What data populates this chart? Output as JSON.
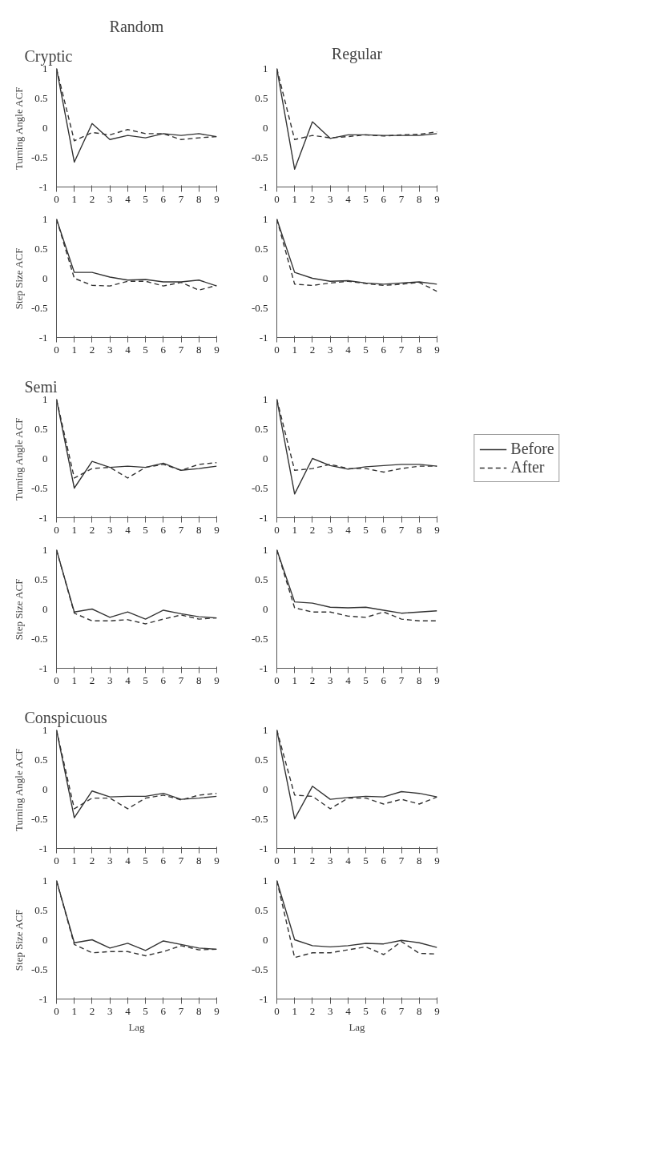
{
  "chart_data": [
    {
      "type": "line",
      "title": "Random",
      "subtitle": "Cryptic",
      "ylabel": "Turning Angle ACF",
      "x": [
        0,
        1,
        2,
        3,
        4,
        5,
        6,
        7,
        8,
        9
      ],
      "xlim": [
        0,
        9
      ],
      "xticks": [
        0,
        1,
        2,
        3,
        4,
        5,
        6,
        7,
        8,
        9
      ],
      "ylim": [
        -1,
        1
      ],
      "yticks": [
        -1,
        -0.5,
        0,
        0.5,
        1
      ],
      "grid": false,
      "series": [
        {
          "color": "#333333",
          "line_style": "solid",
          "values": [
            1,
            -0.58,
            0.07,
            -0.2,
            -0.13,
            -0.17,
            -0.1,
            -0.13,
            -0.1,
            -0.15
          ]
        },
        {
          "color": "#333333",
          "line_style": "dashed",
          "values": [
            1,
            -0.22,
            -0.08,
            -0.12,
            -0.03,
            -0.1,
            -0.1,
            -0.2,
            -0.17,
            -0.15
          ]
        }
      ]
    },
    {
      "type": "line",
      "title": "Regular",
      "x": [
        0,
        1,
        2,
        3,
        4,
        5,
        6,
        7,
        8,
        9
      ],
      "xlim": [
        0,
        9
      ],
      "xticks": [
        0,
        1,
        2,
        3,
        4,
        5,
        6,
        7,
        8,
        9
      ],
      "ylim": [
        -1,
        1
      ],
      "yticks": [
        -1,
        -0.5,
        0,
        0.5,
        1
      ],
      "grid": false,
      "series": [
        {
          "color": "#333333",
          "line_style": "solid",
          "values": [
            1,
            -0.7,
            0.1,
            -0.18,
            -0.12,
            -0.12,
            -0.13,
            -0.13,
            -0.13,
            -0.1
          ]
        },
        {
          "color": "#333333",
          "line_style": "dashed",
          "values": [
            1,
            -0.2,
            -0.13,
            -0.17,
            -0.15,
            -0.12,
            -0.14,
            -0.12,
            -0.11,
            -0.07
          ]
        }
      ]
    },
    {
      "type": "line",
      "ylabel": "Step Size ACF",
      "x": [
        0,
        1,
        2,
        3,
        4,
        5,
        6,
        7,
        8,
        9
      ],
      "xlim": [
        0,
        9
      ],
      "xticks": [
        0,
        1,
        2,
        3,
        4,
        5,
        6,
        7,
        8,
        9
      ],
      "ylim": [
        -1,
        1
      ],
      "yticks": [
        -1,
        -0.5,
        0,
        0.5,
        1
      ],
      "grid": false,
      "series": [
        {
          "color": "#333333",
          "line_style": "solid",
          "values": [
            1,
            0.1,
            0.1,
            0.02,
            -0.03,
            -0.02,
            -0.06,
            -0.06,
            -0.03,
            -0.13
          ]
        },
        {
          "color": "#333333",
          "line_style": "dashed",
          "values": [
            1,
            0.0,
            -0.12,
            -0.13,
            -0.05,
            -0.05,
            -0.13,
            -0.07,
            -0.2,
            -0.12
          ]
        }
      ]
    },
    {
      "type": "line",
      "x": [
        0,
        1,
        2,
        3,
        4,
        5,
        6,
        7,
        8,
        9
      ],
      "xlim": [
        0,
        9
      ],
      "xticks": [
        0,
        1,
        2,
        3,
        4,
        5,
        6,
        7,
        8,
        9
      ],
      "ylim": [
        -1,
        1
      ],
      "yticks": [
        -1,
        -0.5,
        0,
        0.5,
        1
      ],
      "grid": false,
      "series": [
        {
          "color": "#333333",
          "line_style": "solid",
          "values": [
            1,
            0.1,
            0.0,
            -0.05,
            -0.04,
            -0.08,
            -0.1,
            -0.08,
            -0.06,
            -0.1
          ]
        },
        {
          "color": "#333333",
          "line_style": "dashed",
          "values": [
            1,
            -0.1,
            -0.12,
            -0.08,
            -0.05,
            -0.09,
            -0.12,
            -0.1,
            -0.07,
            -0.22
          ]
        }
      ]
    },
    {
      "type": "line",
      "subtitle": "Semi",
      "ylabel": "Turning Angle ACF",
      "x": [
        0,
        1,
        2,
        3,
        4,
        5,
        6,
        7,
        8,
        9
      ],
      "xlim": [
        0,
        9
      ],
      "xticks": [
        0,
        1,
        2,
        3,
        4,
        5,
        6,
        7,
        8,
        9
      ],
      "ylim": [
        -1,
        1
      ],
      "yticks": [
        -1,
        -0.5,
        0,
        0.5,
        1
      ],
      "grid": false,
      "series": [
        {
          "color": "#333333",
          "line_style": "solid",
          "values": [
            1,
            -0.5,
            -0.05,
            -0.15,
            -0.13,
            -0.15,
            -0.08,
            -0.2,
            -0.17,
            -0.13
          ]
        },
        {
          "color": "#333333",
          "line_style": "dashed",
          "values": [
            1,
            -0.33,
            -0.17,
            -0.15,
            -0.33,
            -0.15,
            -0.1,
            -0.2,
            -0.1,
            -0.07
          ]
        }
      ]
    },
    {
      "type": "line",
      "x": [
        0,
        1,
        2,
        3,
        4,
        5,
        6,
        7,
        8,
        9
      ],
      "xlim": [
        0,
        9
      ],
      "xticks": [
        0,
        1,
        2,
        3,
        4,
        5,
        6,
        7,
        8,
        9
      ],
      "ylim": [
        -1,
        1
      ],
      "yticks": [
        -1,
        -0.5,
        0,
        0.5,
        1
      ],
      "grid": false,
      "legend": "right",
      "series": [
        {
          "name": "Before",
          "color": "#333333",
          "line_style": "solid",
          "values": [
            1,
            -0.6,
            0.0,
            -0.12,
            -0.18,
            -0.14,
            -0.12,
            -0.1,
            -0.1,
            -0.13
          ]
        },
        {
          "name": "After",
          "color": "#333333",
          "line_style": "dashed",
          "values": [
            1,
            -0.2,
            -0.17,
            -0.1,
            -0.17,
            -0.17,
            -0.23,
            -0.17,
            -0.13,
            -0.13
          ]
        }
      ]
    },
    {
      "type": "line",
      "ylabel": "Step Size ACF",
      "x": [
        0,
        1,
        2,
        3,
        4,
        5,
        6,
        7,
        8,
        9
      ],
      "xlim": [
        0,
        9
      ],
      "xticks": [
        0,
        1,
        2,
        3,
        4,
        5,
        6,
        7,
        8,
        9
      ],
      "ylim": [
        -1,
        1
      ],
      "yticks": [
        -1,
        -0.5,
        0,
        0.5,
        1
      ],
      "grid": false,
      "series": [
        {
          "color": "#333333",
          "line_style": "solid",
          "values": [
            1,
            -0.05,
            0.0,
            -0.14,
            -0.05,
            -0.17,
            -0.02,
            -0.08,
            -0.13,
            -0.15
          ]
        },
        {
          "color": "#333333",
          "line_style": "dashed",
          "values": [
            1,
            -0.07,
            -0.2,
            -0.2,
            -0.18,
            -0.25,
            -0.17,
            -0.1,
            -0.17,
            -0.15
          ]
        }
      ]
    },
    {
      "type": "line",
      "x": [
        0,
        1,
        2,
        3,
        4,
        5,
        6,
        7,
        8,
        9
      ],
      "xlim": [
        0,
        9
      ],
      "xticks": [
        0,
        1,
        2,
        3,
        4,
        5,
        6,
        7,
        8,
        9
      ],
      "ylim": [
        -1,
        1
      ],
      "yticks": [
        -1,
        -0.5,
        0,
        0.5,
        1
      ],
      "grid": false,
      "series": [
        {
          "color": "#333333",
          "line_style": "solid",
          "values": [
            1,
            0.12,
            0.1,
            0.03,
            0.02,
            0.03,
            -0.02,
            -0.07,
            -0.05,
            -0.03
          ]
        },
        {
          "color": "#333333",
          "line_style": "dashed",
          "values": [
            1,
            0.02,
            -0.05,
            -0.05,
            -0.12,
            -0.14,
            -0.05,
            -0.17,
            -0.2,
            -0.2
          ]
        }
      ]
    },
    {
      "type": "line",
      "subtitle": "Conspicuous",
      "ylabel": "Turning Angle ACF",
      "x": [
        0,
        1,
        2,
        3,
        4,
        5,
        6,
        7,
        8,
        9
      ],
      "xlim": [
        0,
        9
      ],
      "xticks": [
        0,
        1,
        2,
        3,
        4,
        5,
        6,
        7,
        8,
        9
      ],
      "ylim": [
        -1,
        1
      ],
      "yticks": [
        -1,
        -0.5,
        0,
        0.5,
        1
      ],
      "grid": false,
      "series": [
        {
          "color": "#333333",
          "line_style": "solid",
          "values": [
            1,
            -0.48,
            -0.03,
            -0.13,
            -0.12,
            -0.12,
            -0.07,
            -0.17,
            -0.15,
            -0.12
          ]
        },
        {
          "color": "#333333",
          "line_style": "dashed",
          "values": [
            1,
            -0.33,
            -0.15,
            -0.15,
            -0.33,
            -0.15,
            -0.1,
            -0.18,
            -0.1,
            -0.07
          ]
        }
      ]
    },
    {
      "type": "line",
      "x": [
        0,
        1,
        2,
        3,
        4,
        5,
        6,
        7,
        8,
        9
      ],
      "xlim": [
        0,
        9
      ],
      "xticks": [
        0,
        1,
        2,
        3,
        4,
        5,
        6,
        7,
        8,
        9
      ],
      "ylim": [
        -1,
        1
      ],
      "yticks": [
        -1,
        -0.5,
        0,
        0.5,
        1
      ],
      "grid": false,
      "series": [
        {
          "color": "#333333",
          "line_style": "solid",
          "values": [
            1,
            -0.5,
            0.05,
            -0.17,
            -0.14,
            -0.12,
            -0.13,
            -0.04,
            -0.07,
            -0.13
          ]
        },
        {
          "color": "#333333",
          "line_style": "dashed",
          "values": [
            1,
            -0.1,
            -0.12,
            -0.33,
            -0.15,
            -0.15,
            -0.25,
            -0.17,
            -0.25,
            -0.13
          ]
        }
      ]
    },
    {
      "type": "line",
      "ylabel": "Step Size ACF",
      "xlabel": "Lag",
      "x": [
        0,
        1,
        2,
        3,
        4,
        5,
        6,
        7,
        8,
        9
      ],
      "xlim": [
        0,
        9
      ],
      "xticks": [
        0,
        1,
        2,
        3,
        4,
        5,
        6,
        7,
        8,
        9
      ],
      "ylim": [
        -1,
        1
      ],
      "yticks": [
        -1,
        -0.5,
        0,
        0.5,
        1
      ],
      "grid": false,
      "series": [
        {
          "color": "#333333",
          "line_style": "solid",
          "values": [
            1,
            -0.05,
            0.0,
            -0.14,
            -0.06,
            -0.18,
            -0.02,
            -0.08,
            -0.14,
            -0.16
          ]
        },
        {
          "color": "#333333",
          "line_style": "dashed",
          "values": [
            1,
            -0.08,
            -0.22,
            -0.2,
            -0.2,
            -0.27,
            -0.2,
            -0.1,
            -0.17,
            -0.16
          ]
        }
      ]
    },
    {
      "type": "line",
      "xlabel": "Lag",
      "x": [
        0,
        1,
        2,
        3,
        4,
        5,
        6,
        7,
        8,
        9
      ],
      "xlim": [
        0,
        9
      ],
      "xticks": [
        0,
        1,
        2,
        3,
        4,
        5,
        6,
        7,
        8,
        9
      ],
      "ylim": [
        -1,
        1
      ],
      "yticks": [
        -1,
        -0.5,
        0,
        0.5,
        1
      ],
      "grid": false,
      "series": [
        {
          "color": "#333333",
          "line_style": "solid",
          "values": [
            1,
            0.0,
            -0.1,
            -0.12,
            -0.1,
            -0.06,
            -0.07,
            -0.01,
            -0.05,
            -0.13
          ]
        },
        {
          "color": "#333333",
          "line_style": "dashed",
          "values": [
            1,
            -0.3,
            -0.22,
            -0.22,
            -0.17,
            -0.12,
            -0.25,
            -0.03,
            -0.23,
            -0.24
          ]
        }
      ]
    }
  ]
}
